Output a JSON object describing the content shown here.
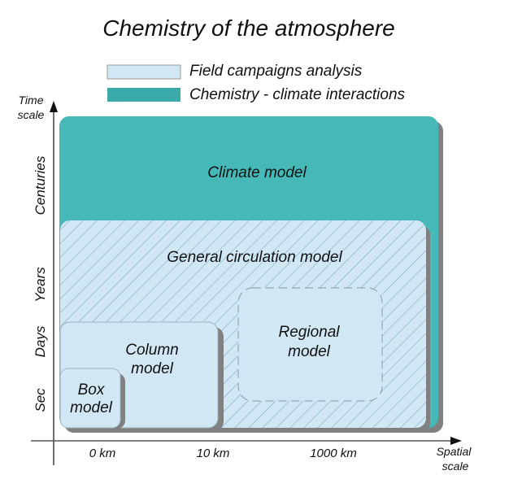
{
  "title": "Chemistry of the atmosphere",
  "legend": [
    {
      "label": "Field campaigns analysis",
      "color": "#d2e7f4"
    },
    {
      "label": "Chemistry - climate interactions",
      "color": "#3aa9a9"
    }
  ],
  "y_axis": {
    "label_line1": "Time",
    "label_line2": "scale",
    "ticks": [
      "Centuries",
      "Years",
      "Days",
      "Sec"
    ]
  },
  "x_axis": {
    "label_line1": "Spatial",
    "label_line2": "scale",
    "ticks": [
      "0 km",
      "10 km",
      "1000 km"
    ]
  },
  "boxes": {
    "climate": {
      "label": "Climate model",
      "color": "#47b8b8"
    },
    "gcm": {
      "label": "General circulation model",
      "color": "#d2e7f4"
    },
    "regional": {
      "line1": "Regional",
      "line2": "model"
    },
    "column": {
      "line1": "Column",
      "line2": "model"
    },
    "box": {
      "line1": "Box",
      "line2": "model"
    }
  }
}
